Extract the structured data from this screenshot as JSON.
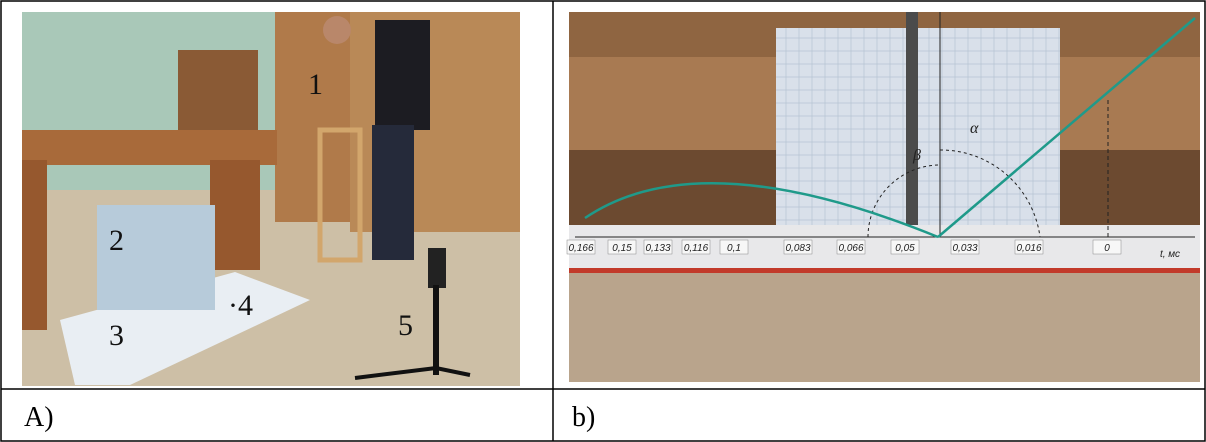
{
  "panels": [
    {
      "label": "A)",
      "annotations": [
        "1",
        "2",
        "3",
        "·4",
        "5"
      ]
    },
    {
      "label": "b)",
      "axis_ticks": [
        "0,166",
        "0,15",
        "0,133",
        "0,116",
        "0,1",
        "0,083",
        "0,066",
        "0,05",
        "0,033",
        "0,016",
        "0"
      ],
      "axis_label": "t, мс",
      "angles": [
        "β",
        "α"
      ]
    }
  ]
}
